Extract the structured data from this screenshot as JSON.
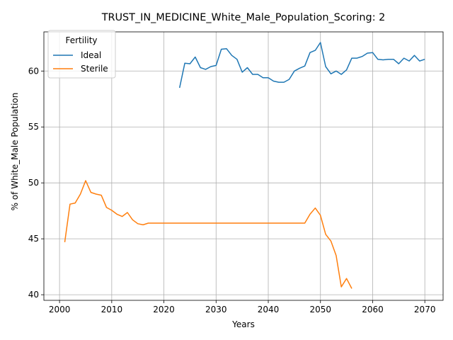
{
  "chart_data": {
    "type": "line",
    "title": "TRUST_IN_MEDICINE_White_Male_Population_Scoring: 2",
    "xlabel": "Years",
    "ylabel": "% of White_Male Population",
    "xlim": [
      1997,
      2073.5
    ],
    "ylim": [
      39.5,
      63.5
    ],
    "xticks": [
      2000,
      2010,
      2020,
      2030,
      2040,
      2050,
      2060,
      2070
    ],
    "yticks": [
      40,
      45,
      50,
      55,
      60
    ],
    "grid": true,
    "legend": {
      "title": "Fertility",
      "placement": "upper-left"
    },
    "series": [
      {
        "name": "Ideal",
        "color": "#1f77b4",
        "x": [
          2023,
          2024,
          2025,
          2026,
          2027,
          2028,
          2029,
          2030,
          2031,
          2032,
          2033,
          2034,
          2035,
          2036,
          2037,
          2038,
          2039,
          2040,
          2041,
          2042,
          2043,
          2044,
          2045,
          2046,
          2047,
          2048,
          2049,
          2050,
          2051,
          2052,
          2053,
          2054,
          2055,
          2056,
          2057,
          2058,
          2059,
          2060,
          2061,
          2062,
          2063,
          2064,
          2065,
          2066,
          2067,
          2068,
          2069,
          2070
        ],
        "y": [
          58.5,
          60.7,
          60.65,
          61.25,
          60.3,
          60.15,
          60.4,
          60.5,
          61.95,
          62.0,
          61.4,
          61.05,
          59.9,
          60.3,
          59.7,
          59.7,
          59.4,
          59.4,
          59.1,
          59.0,
          59.0,
          59.25,
          60.0,
          60.25,
          60.45,
          61.65,
          61.85,
          62.55,
          60.4,
          59.75,
          60.0,
          59.7,
          60.1,
          61.15,
          61.15,
          61.3,
          61.6,
          61.65,
          61.05,
          61.0,
          61.05,
          61.05,
          60.65,
          61.15,
          60.9,
          61.4,
          60.9,
          61.05
        ]
      },
      {
        "name": "Sterile",
        "color": "#ff7f0e",
        "x": [
          2001,
          2002,
          2003,
          2004,
          2005,
          2006,
          2007,
          2008,
          2009,
          2010,
          2011,
          2012,
          2013,
          2014,
          2015,
          2016,
          2017,
          2018,
          2019,
          2020,
          2021,
          2022,
          2023,
          2024,
          2025,
          2026,
          2027,
          2028,
          2029,
          2030,
          2031,
          2032,
          2033,
          2034,
          2035,
          2036,
          2037,
          2038,
          2039,
          2040,
          2041,
          2042,
          2043,
          2044,
          2045,
          2046,
          2047,
          2048,
          2049,
          2050,
          2051,
          2052,
          2053,
          2054,
          2055,
          2056
        ],
        "y": [
          44.7,
          48.1,
          48.2,
          49.0,
          50.2,
          49.15,
          49.0,
          48.9,
          47.8,
          47.55,
          47.2,
          47.0,
          47.35,
          46.7,
          46.35,
          46.25,
          46.4,
          46.4,
          46.4,
          46.4,
          46.4,
          46.4,
          46.4,
          46.4,
          46.4,
          46.4,
          46.4,
          46.4,
          46.4,
          46.4,
          46.4,
          46.4,
          46.4,
          46.4,
          46.4,
          46.4,
          46.4,
          46.4,
          46.4,
          46.4,
          46.4,
          46.4,
          46.4,
          46.4,
          46.4,
          46.4,
          46.4,
          47.2,
          47.75,
          47.1,
          45.4,
          44.8,
          43.5,
          40.7,
          41.45,
          40.55
        ]
      }
    ]
  }
}
